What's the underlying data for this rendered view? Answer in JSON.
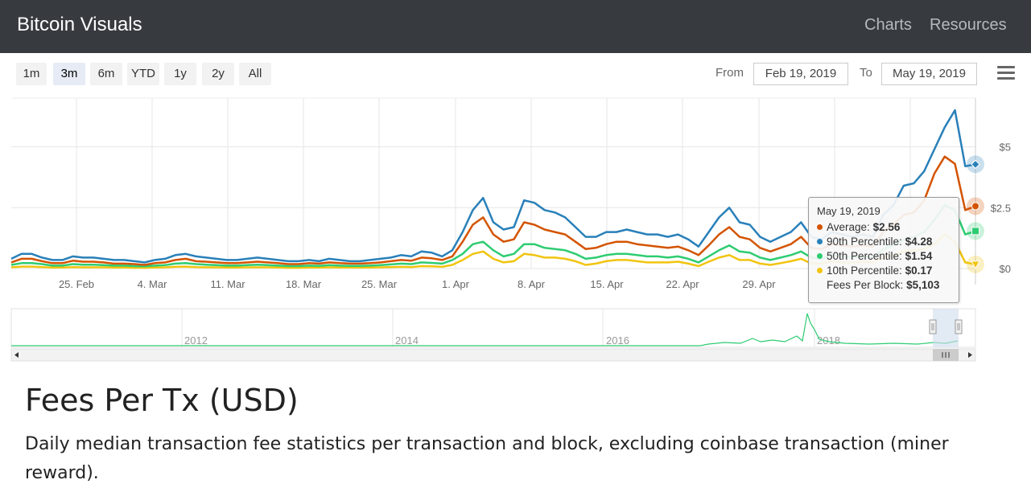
{
  "navbar": {
    "brand": "Bitcoin Visuals",
    "links": [
      "Charts",
      "Resources"
    ]
  },
  "range_selector": {
    "buttons": [
      "1m",
      "3m",
      "6m",
      "YTD",
      "1y",
      "2y",
      "All"
    ],
    "selected": "3m",
    "from_label": "From",
    "from_value": "Feb 19, 2019",
    "to_label": "To",
    "to_value": "May 19, 2019"
  },
  "tooltip": {
    "date": "May 19, 2019",
    "rows": [
      {
        "label": "Average:",
        "value": "$2.56",
        "color": "#d35400"
      },
      {
        "label": "90th Percentile:",
        "value": "$4.28",
        "color": "#2980b9"
      },
      {
        "label": "50th Percentile:",
        "value": "$1.54",
        "color": "#2ecc71"
      },
      {
        "label": "10th Percentile:",
        "value": "$0.17",
        "color": "#f1c40f"
      },
      {
        "label": "Fees Per Block:",
        "value": "$5,103",
        "color": ""
      }
    ]
  },
  "page": {
    "title": "Fees Per Tx (USD)",
    "description": "Daily median transaction fee statistics per transaction and block, excluding coinbase transaction (miner reward)."
  },
  "chart_data": {
    "type": "line",
    "x_start": "2019-02-19",
    "x_end": "2019-05-19",
    "x_tick_labels": [
      "25. Feb",
      "4. Mar",
      "11. Mar",
      "18. Mar",
      "25. Mar",
      "1. Apr",
      "8. Apr",
      "15. Apr",
      "22. Apr",
      "29. Apr"
    ],
    "y_tick_labels": [
      "$0",
      "$2.5",
      "$5"
    ],
    "ylim": [
      0,
      7
    ],
    "series": [
      {
        "name": "90th Percentile",
        "color": "#2980b9",
        "values": [
          0.4,
          0.6,
          0.6,
          0.45,
          0.35,
          0.35,
          0.5,
          0.45,
          0.45,
          0.4,
          0.35,
          0.35,
          0.3,
          0.25,
          0.35,
          0.4,
          0.55,
          0.6,
          0.5,
          0.45,
          0.4,
          0.35,
          0.35,
          0.4,
          0.45,
          0.4,
          0.35,
          0.3,
          0.3,
          0.35,
          0.3,
          0.4,
          0.35,
          0.3,
          0.3,
          0.35,
          0.4,
          0.45,
          0.55,
          0.5,
          0.7,
          0.65,
          0.5,
          0.75,
          1.5,
          2.4,
          2.9,
          1.9,
          1.6,
          1.7,
          2.8,
          2.7,
          2.4,
          2.3,
          2.1,
          1.7,
          1.3,
          1.3,
          1.5,
          1.5,
          1.6,
          1.5,
          1.4,
          1.4,
          1.3,
          1.4,
          1.2,
          0.9,
          1.5,
          2.1,
          2.5,
          1.9,
          1.8,
          1.3,
          1.1,
          1.3,
          1.5,
          1.9,
          1.3,
          1.2,
          1.5,
          1.4,
          1.3,
          1.4,
          1.3,
          2.2,
          2.6,
          3.4,
          3.5,
          4.0,
          4.9,
          5.8,
          6.5,
          4.2,
          4.28
        ]
      },
      {
        "name": "Average",
        "color": "#d35400",
        "values": [
          0.25,
          0.4,
          0.4,
          0.3,
          0.22,
          0.22,
          0.32,
          0.28,
          0.28,
          0.25,
          0.2,
          0.2,
          0.18,
          0.15,
          0.22,
          0.25,
          0.35,
          0.4,
          0.3,
          0.28,
          0.25,
          0.22,
          0.22,
          0.25,
          0.28,
          0.25,
          0.22,
          0.18,
          0.18,
          0.22,
          0.2,
          0.25,
          0.22,
          0.2,
          0.2,
          0.22,
          0.25,
          0.3,
          0.35,
          0.32,
          0.45,
          0.42,
          0.35,
          0.5,
          1.1,
          1.8,
          2.1,
          1.4,
          1.1,
          1.2,
          1.9,
          1.8,
          1.6,
          1.5,
          1.4,
          1.1,
          0.8,
          0.85,
          1.0,
          1.1,
          1.1,
          1.0,
          0.95,
          0.9,
          0.85,
          0.9,
          0.75,
          0.55,
          0.95,
          1.4,
          1.7,
          1.3,
          1.2,
          0.85,
          0.7,
          0.85,
          1.0,
          1.3,
          0.85,
          0.8,
          1.0,
          0.95,
          0.9,
          0.95,
          0.9,
          1.5,
          1.8,
          2.2,
          2.3,
          2.8,
          3.9,
          4.6,
          4.3,
          2.4,
          2.56
        ]
      },
      {
        "name": "50th Percentile",
        "color": "#2ecc71",
        "values": [
          0.15,
          0.22,
          0.22,
          0.18,
          0.12,
          0.12,
          0.18,
          0.16,
          0.16,
          0.14,
          0.12,
          0.12,
          0.1,
          0.09,
          0.12,
          0.14,
          0.2,
          0.22,
          0.18,
          0.16,
          0.14,
          0.12,
          0.12,
          0.14,
          0.16,
          0.14,
          0.12,
          0.1,
          0.1,
          0.12,
          0.11,
          0.14,
          0.12,
          0.11,
          0.11,
          0.12,
          0.14,
          0.17,
          0.2,
          0.18,
          0.25,
          0.23,
          0.2,
          0.35,
          0.6,
          1.0,
          1.1,
          0.75,
          0.5,
          0.6,
          1.0,
          1.0,
          0.85,
          0.8,
          0.75,
          0.6,
          0.4,
          0.45,
          0.55,
          0.6,
          0.6,
          0.55,
          0.5,
          0.5,
          0.45,
          0.5,
          0.4,
          0.25,
          0.5,
          0.75,
          0.95,
          0.7,
          0.65,
          0.45,
          0.35,
          0.45,
          0.55,
          0.7,
          0.45,
          0.4,
          0.55,
          0.5,
          0.45,
          0.5,
          0.45,
          0.8,
          0.95,
          1.2,
          1.3,
          1.5,
          2.0,
          2.6,
          2.4,
          1.4,
          1.54
        ]
      },
      {
        "name": "10th Percentile",
        "color": "#f1c40f",
        "values": [
          0.05,
          0.08,
          0.08,
          0.06,
          0.04,
          0.04,
          0.06,
          0.05,
          0.05,
          0.05,
          0.04,
          0.04,
          0.03,
          0.03,
          0.04,
          0.05,
          0.07,
          0.08,
          0.06,
          0.05,
          0.05,
          0.04,
          0.04,
          0.05,
          0.05,
          0.05,
          0.04,
          0.03,
          0.03,
          0.04,
          0.04,
          0.05,
          0.04,
          0.04,
          0.04,
          0.04,
          0.05,
          0.06,
          0.07,
          0.06,
          0.1,
          0.09,
          0.07,
          0.15,
          0.35,
          0.6,
          0.7,
          0.4,
          0.25,
          0.3,
          0.6,
          0.55,
          0.45,
          0.45,
          0.4,
          0.3,
          0.15,
          0.2,
          0.3,
          0.35,
          0.35,
          0.3,
          0.25,
          0.25,
          0.25,
          0.28,
          0.2,
          0.1,
          0.28,
          0.45,
          0.55,
          0.35,
          0.35,
          0.2,
          0.15,
          0.22,
          0.3,
          0.4,
          0.2,
          0.2,
          0.3,
          0.25,
          0.25,
          0.28,
          0.25,
          0.45,
          0.55,
          0.7,
          0.75,
          0.8,
          1.0,
          1.4,
          1.1,
          0.25,
          0.17
        ]
      }
    ],
    "navigator": {
      "tick_labels": [
        "2012",
        "2014",
        "2016",
        "2018"
      ],
      "color": "#2ecc71"
    }
  }
}
